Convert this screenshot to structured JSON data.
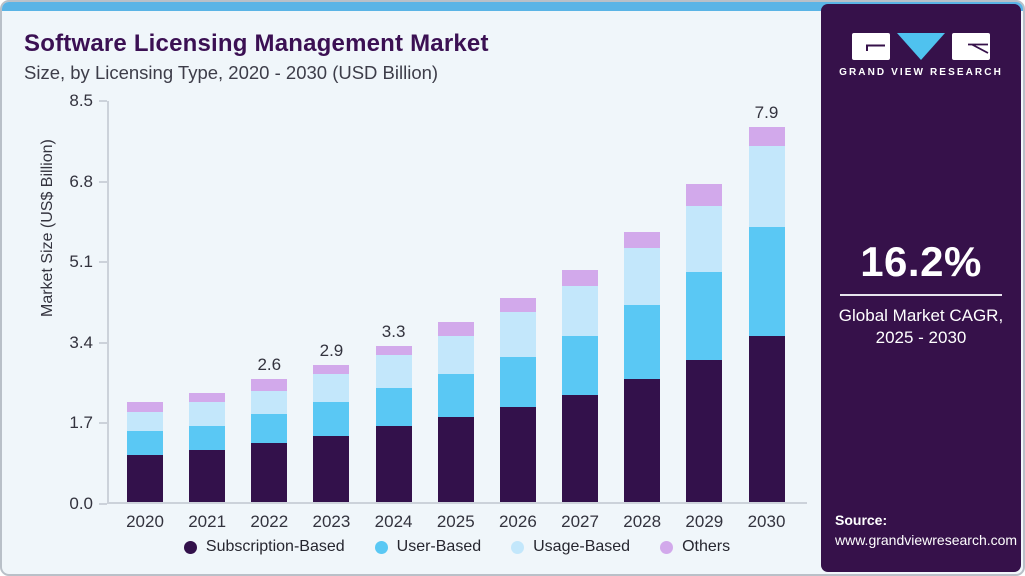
{
  "theme": {
    "card_bg": "#f0f6fa",
    "top_strip_color": "#5ab4e6",
    "sidebar_bg": "#36114a",
    "title_color": "#3b1053",
    "axis_color": "#ccd2da",
    "logo_triangle_color": "#4fc2ef"
  },
  "header": {
    "title": "Software Licensing Management Market",
    "subtitle": "Size, by Licensing Type, 2020 - 2030 (USD Billion)"
  },
  "sidebar": {
    "brand_name": "GRAND VIEW RESEARCH",
    "cagr_value": "16.2%",
    "cagr_line1": "Global Market CAGR,",
    "cagr_line2": "2025 - 2030",
    "source_label": "Source:",
    "source_url": "www.grandviewresearch.com"
  },
  "chart_data": {
    "type": "bar",
    "stacked": true,
    "title": "Software Licensing Management Market Size, by Licensing Type, 2020 - 2030 (USD Billion)",
    "xlabel": "",
    "ylabel": "Market Size (US$ Billion)",
    "ylim": [
      0,
      8.5
    ],
    "yticks": [
      "0.0",
      "1.7",
      "3.4",
      "5.1",
      "6.8",
      "8.5"
    ],
    "grid": false,
    "legend_position": "bottom",
    "categories": [
      "2020",
      "2021",
      "2022",
      "2023",
      "2024",
      "2025",
      "2026",
      "2027",
      "2028",
      "2029",
      "2030"
    ],
    "series": [
      {
        "name": "Subscription-Based",
        "color": "#33114b",
        "values": [
          1.0,
          1.1,
          1.25,
          1.4,
          1.6,
          1.8,
          2.0,
          2.25,
          2.6,
          3.0,
          3.5
        ]
      },
      {
        "name": "User-Based",
        "color": "#5ac8f4",
        "values": [
          0.5,
          0.5,
          0.6,
          0.7,
          0.8,
          0.9,
          1.05,
          1.25,
          1.55,
          1.85,
          2.3
        ]
      },
      {
        "name": "Usage-Based",
        "color": "#c3e7fb",
        "values": [
          0.4,
          0.5,
          0.5,
          0.6,
          0.7,
          0.8,
          0.95,
          1.05,
          1.2,
          1.4,
          1.7
        ]
      },
      {
        "name": "Others",
        "color": "#d2a9eb",
        "values": [
          0.2,
          0.2,
          0.25,
          0.2,
          0.2,
          0.3,
          0.3,
          0.35,
          0.35,
          0.45,
          0.4
        ]
      }
    ],
    "totals": [
      2.1,
      2.3,
      2.6,
      2.9,
      3.3,
      3.8,
      4.3,
      4.9,
      5.7,
      6.7,
      7.9
    ],
    "total_labels_shown": {
      "2022": "2.6",
      "2023": "2.9",
      "2024": "3.3",
      "2030": "7.9"
    }
  }
}
